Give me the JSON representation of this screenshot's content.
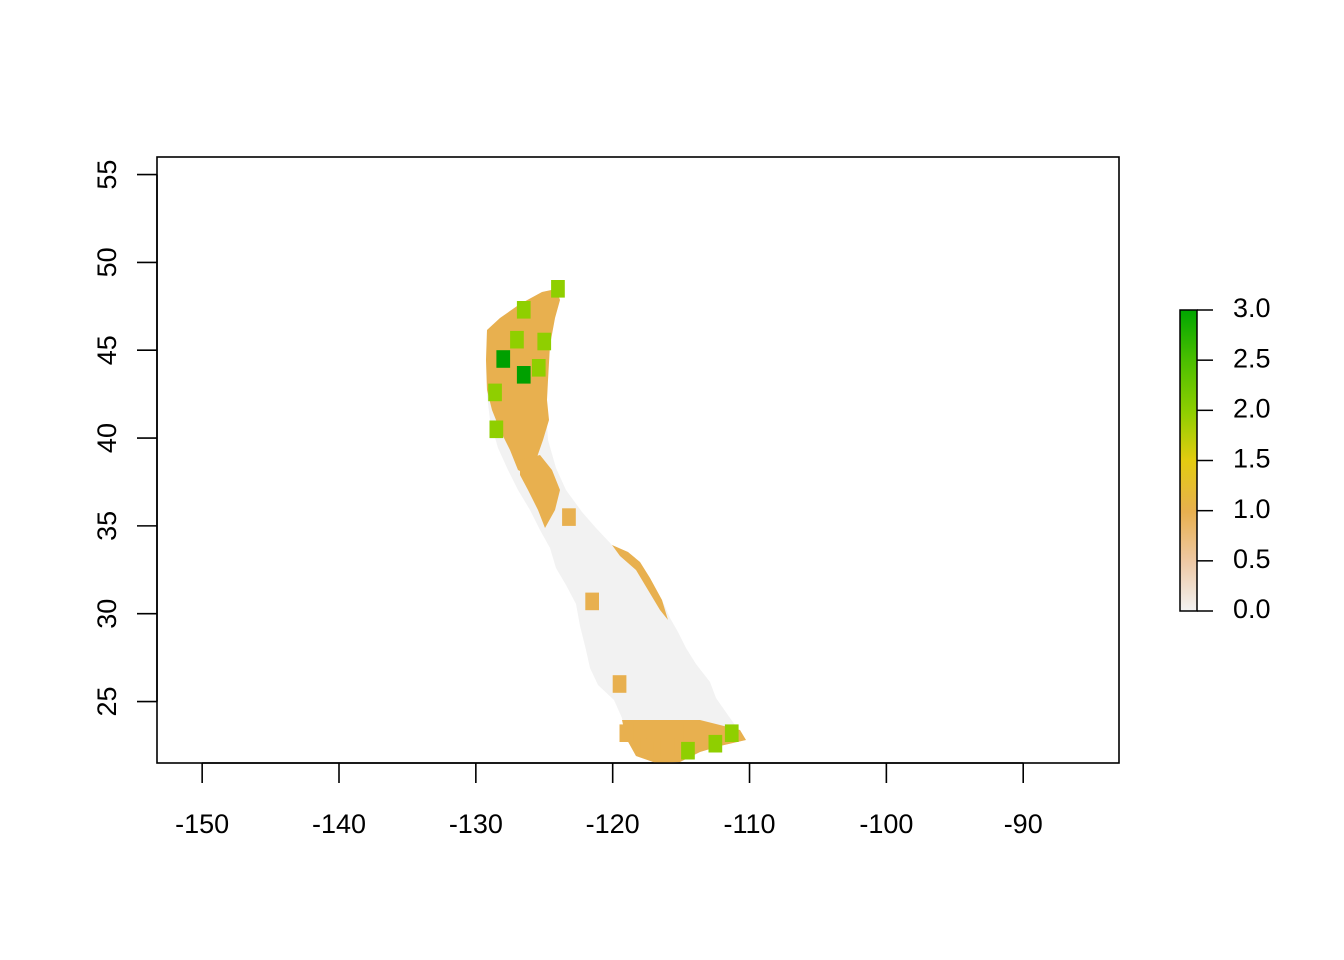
{
  "chart_data": {
    "type": "heatmap",
    "title": "",
    "xlabel": "",
    "ylabel": "",
    "xlim": [
      -153.3,
      -83.0
    ],
    "ylim": [
      21.5,
      56.0
    ],
    "x_ticks": [
      -150,
      -140,
      -130,
      -120,
      -110,
      -100,
      -90
    ],
    "x_tick_labels": [
      "-150",
      "-140",
      "-130",
      "-120",
      "-110",
      "-100",
      "-90"
    ],
    "y_ticks": [
      25,
      30,
      35,
      40,
      45,
      50,
      55
    ],
    "y_tick_labels": [
      "25",
      "30",
      "35",
      "40",
      "45",
      "50",
      "55"
    ],
    "legend": {
      "position": "right",
      "min": 0.0,
      "max": 3.0,
      "ticks": [
        0.0,
        0.5,
        1.0,
        1.5,
        2.0,
        2.5,
        3.0
      ],
      "tick_labels": [
        "0.0",
        "0.5",
        "1.0",
        "1.5",
        "2.0",
        "2.5",
        "3.0"
      ],
      "colors": [
        "#f2f2f2",
        "#eec9a6",
        "#e8b04f",
        "#e3cc10",
        "#8fcf00",
        "#4cbf00",
        "#00a600"
      ]
    },
    "grid": false,
    "colors": {
      "zero": "#f2f2f2",
      "one": "#e8b04f",
      "two": "#8fcf00",
      "three": "#00a000"
    },
    "cells": [
      {
        "lon": -116.0,
        "lat": 22.4,
        "value": 1
      },
      {
        "lon": -117.5,
        "lat": 22.4,
        "value": 1
      },
      {
        "lon": -114.3,
        "lat": 23.2,
        "value": 1
      },
      {
        "lon": -119.0,
        "lat": 23.2,
        "value": 1
      },
      {
        "lon": -117.0,
        "lat": 23.2,
        "value": 1
      },
      {
        "lon": -114.5,
        "lat": 22.2,
        "value": 2
      },
      {
        "lon": -112.5,
        "lat": 22.6,
        "value": 2
      },
      {
        "lon": -111.3,
        "lat": 23.2,
        "value": 2
      },
      {
        "lon": -119.5,
        "lat": 26.0,
        "value": 1
      },
      {
        "lon": -121.5,
        "lat": 30.7,
        "value": 1
      },
      {
        "lon": -123.2,
        "lat": 35.5,
        "value": 1
      },
      {
        "lon": -128.5,
        "lat": 40.5,
        "value": 2
      },
      {
        "lon": -128.6,
        "lat": 42.6,
        "value": 2
      },
      {
        "lon": -128.0,
        "lat": 44.5,
        "value": 3
      },
      {
        "lon": -126.5,
        "lat": 43.6,
        "value": 3
      },
      {
        "lon": -125.4,
        "lat": 44.0,
        "value": 2
      },
      {
        "lon": -127.0,
        "lat": 45.6,
        "value": 2
      },
      {
        "lon": -126.5,
        "lat": 47.3,
        "value": 2
      },
      {
        "lon": -125.0,
        "lat": 45.5,
        "value": 2
      },
      {
        "lon": -124.0,
        "lat": 48.5,
        "value": 2
      }
    ]
  }
}
